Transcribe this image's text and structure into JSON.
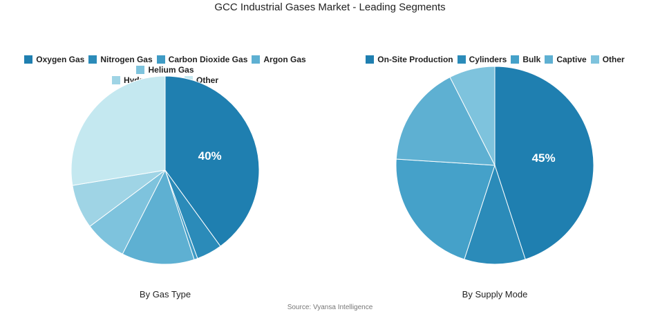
{
  "title": "GCC Industrial Gases Market - Leading Segments",
  "source": "Source: Vyansa Intelligence",
  "chart_data": [
    {
      "type": "pie",
      "subtitle": "By Gas Type",
      "start": "top",
      "direction": "clockwise",
      "labels": [
        "Oxygen Gas",
        "Nitrogen Gas",
        "Carbon Dioxide Gas",
        "Argon Gas",
        "Helium Gas",
        "Hydrogen Gas",
        "Other"
      ],
      "values": [
        40,
        4.4,
        0.6,
        12.5,
        7.3,
        7.6,
        27.6
      ],
      "colors": [
        "#1f7fb0",
        "#2b8bb9",
        "#3f9bc5",
        "#5eb0d2",
        "#7ec3dd",
        "#9fd4e5",
        "#c4e8f0"
      ],
      "data_labels": [
        "40%",
        "",
        "",
        "",
        "",
        "",
        ""
      ],
      "legend": "top"
    },
    {
      "type": "pie",
      "subtitle": "By Supply Mode",
      "start": "top",
      "direction": "clockwise",
      "labels": [
        "On-Site Production",
        "Cylinders",
        "Bulk",
        "Captive",
        "Other"
      ],
      "values": [
        45,
        10,
        21,
        16.5,
        7.5
      ],
      "colors": [
        "#1f7fb0",
        "#2b8bb9",
        "#45a1c9",
        "#5eb0d2",
        "#7ec3dd"
      ],
      "data_labels": [
        "45%",
        "",
        "",
        "",
        ""
      ],
      "legend": "top"
    }
  ]
}
